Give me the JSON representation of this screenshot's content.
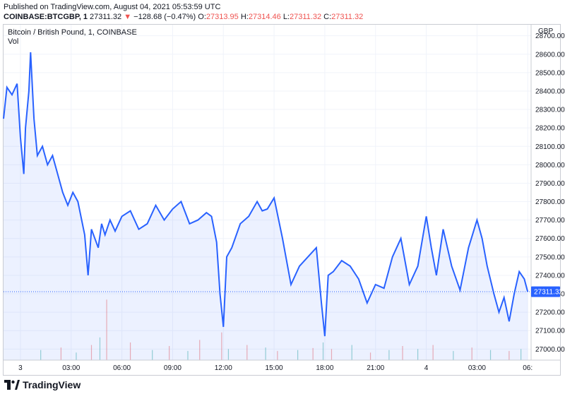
{
  "header": {
    "published": "Published on TradingView.com, August 04, 2021 05:53:59 UTC",
    "symbol": "COINBASE:BTCGBP, 1",
    "last": "27311.32",
    "change_arrow": "▼",
    "change": "−128.68 (−0.47%)",
    "o_label": "O:",
    "o_value": "27313.95",
    "h_label": "H:",
    "h_value": "27314.46",
    "l_label": "L:",
    "l_value": "27311.32",
    "c_label": "C:",
    "c_value": "27311.32"
  },
  "legend": {
    "title": "Bitcoin / British Pound, 1, COINBASE",
    "volume": "Vol"
  },
  "footer": {
    "brand": "TradingView"
  },
  "colors": {
    "line": "#2962ff",
    "fill": "#2962ff",
    "up": "#26a69a",
    "down": "#ef5350",
    "grid": "#f0f3fa"
  },
  "chart_data": {
    "type": "line",
    "title": "Bitcoin / British Pound, 1, COINBASE",
    "currency_label": "GBP",
    "current_value": 27311.32,
    "current_label": "27311.32",
    "ylim": [
      26940,
      28760
    ],
    "y_ticks": [
      27000,
      27100,
      27200,
      27300,
      27400,
      27500,
      27600,
      27700,
      27800,
      27900,
      28000,
      28100,
      28200,
      28300,
      28400,
      28500,
      28600,
      28700
    ],
    "y_tick_labels": [
      "27000.00",
      "27100.00",
      "27200.00",
      "27300.00",
      "27400.00",
      "27500.00",
      "27600.00",
      "27700.00",
      "27800.00",
      "27900.00",
      "28000.00",
      "28100.00",
      "28200.00",
      "28300.00",
      "28400.00",
      "28500.00",
      "28600.00",
      "28700.00"
    ],
    "x_range_hours": [
      -1.0,
      30.2
    ],
    "x_ticks": [
      {
        "h": 0,
        "label": "3"
      },
      {
        "h": 3,
        "label": "03:00"
      },
      {
        "h": 6,
        "label": "06:00"
      },
      {
        "h": 9,
        "label": "09:00"
      },
      {
        "h": 12,
        "label": "12:00"
      },
      {
        "h": 15,
        "label": "15:00"
      },
      {
        "h": 18,
        "label": "18:00"
      },
      {
        "h": 21,
        "label": "21:00"
      },
      {
        "h": 24,
        "label": "4"
      },
      {
        "h": 27,
        "label": "03:00"
      },
      {
        "h": 30,
        "label": "06:"
      }
    ],
    "series": [
      {
        "name": "BTCGBP",
        "x_hours": [
          -1.0,
          -0.8,
          -0.5,
          -0.2,
          0.0,
          0.2,
          0.3,
          0.5,
          0.6,
          0.8,
          1.0,
          1.3,
          1.6,
          1.9,
          2.2,
          2.5,
          2.8,
          3.1,
          3.4,
          3.8,
          4.0,
          4.2,
          4.4,
          4.6,
          4.8,
          5.0,
          5.3,
          5.6,
          6.0,
          6.5,
          7.0,
          7.5,
          8.0,
          8.5,
          9.0,
          9.5,
          10.0,
          10.5,
          11.0,
          11.3,
          11.6,
          11.8,
          12.0,
          12.2,
          12.5,
          13.0,
          13.5,
          14.0,
          14.3,
          14.6,
          15.0,
          15.5,
          16.0,
          16.5,
          17.0,
          17.5,
          17.8,
          18.0,
          18.2,
          18.5,
          19.0,
          19.5,
          20.0,
          20.5,
          21.0,
          21.5,
          22.0,
          22.5,
          23.0,
          23.5,
          24.0,
          24.3,
          24.6,
          25.0,
          25.5,
          26.0,
          26.5,
          27.0,
          27.3,
          27.6,
          28.0,
          28.3,
          28.6,
          28.9,
          29.2,
          29.5,
          29.8,
          30.0
        ],
        "values": [
          28250,
          28420,
          28380,
          28440,
          28150,
          27950,
          28200,
          28400,
          28610,
          28250,
          28050,
          28100,
          28000,
          28050,
          27950,
          27850,
          27780,
          27850,
          27800,
          27620,
          27400,
          27650,
          27600,
          27550,
          27680,
          27620,
          27700,
          27640,
          27720,
          27750,
          27650,
          27680,
          27780,
          27700,
          27760,
          27800,
          27680,
          27700,
          27740,
          27720,
          27580,
          27300,
          27120,
          27500,
          27550,
          27680,
          27720,
          27800,
          27750,
          27760,
          27820,
          27600,
          27350,
          27450,
          27500,
          27550,
          27250,
          27070,
          27400,
          27420,
          27480,
          27450,
          27380,
          27250,
          27350,
          27330,
          27500,
          27600,
          27350,
          27450,
          27720,
          27550,
          27400,
          27650,
          27450,
          27320,
          27550,
          27700,
          27600,
          27450,
          27300,
          27200,
          27280,
          27150,
          27300,
          27420,
          27380,
          27311
        ]
      }
    ],
    "volume": {
      "x_hours": [
        1.2,
        2.4,
        3.3,
        4.2,
        4.7,
        5.1,
        6.5,
        7.8,
        8.8,
        9.9,
        10.6,
        11.9,
        12.3,
        13.4,
        14.5,
        15.2,
        16.4,
        17.3,
        17.9,
        18.4,
        19.6,
        20.7,
        21.8,
        22.6,
        23.5,
        24.4,
        25.6,
        26.7,
        27.8,
        28.9,
        29.6
      ],
      "values": [
        20,
        25,
        15,
        30,
        45,
        120,
        35,
        20,
        28,
        18,
        40,
        55,
        22,
        30,
        25,
        18,
        20,
        24,
        35,
        22,
        30,
        15,
        20,
        28,
        22,
        30,
        18,
        25,
        20,
        18,
        22
      ],
      "up": [
        true,
        false,
        true,
        false,
        true,
        false,
        false,
        true,
        false,
        true,
        false,
        false,
        true,
        false,
        true,
        false,
        true,
        false,
        true,
        false,
        true,
        false,
        true,
        false,
        true,
        false,
        true,
        false,
        true,
        false,
        true
      ]
    }
  }
}
